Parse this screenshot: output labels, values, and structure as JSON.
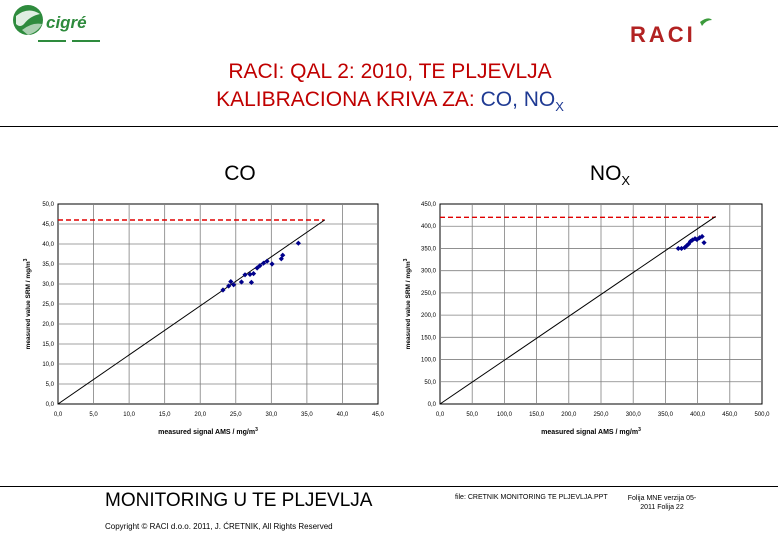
{
  "header": {
    "cigre_logo_text": "cigré",
    "raci_logo_text": "RACI",
    "title_line1": "RACI: QAL 2: 2010, TE PLJEVLJA",
    "title_line2_prefix": "KALIBRACIONA KRIVA ZA: ",
    "title_line2_suffix": "CO, NO",
    "title_line2_sub": "X"
  },
  "colors": {
    "title": "#c00000",
    "points": "#00008b",
    "dashed": "#e00000",
    "grid": "#808080"
  },
  "chart_data": [
    {
      "type": "scatter",
      "title": "CO",
      "title_sub": "",
      "xlabel": "measured signal AMS / mg/m",
      "xlabel_sup": "3",
      "ylabel": "measured value SRM / mg/m",
      "ylabel_sup": "3",
      "xlim": [
        0,
        45
      ],
      "ylim": [
        0,
        50
      ],
      "xticks": [
        "0,0",
        "5,0",
        "10,0",
        "15,0",
        "20,0",
        "25,0",
        "30,0",
        "35,0",
        "40,0",
        "45,0"
      ],
      "yticks": [
        "0,0",
        "5,0",
        "10,0",
        "15,0",
        "20,0",
        "25,0",
        "30,0",
        "35,0",
        "40,0",
        "45,0",
        "50,0"
      ],
      "dashed_limit_y": 46,
      "calibration_line": [
        [
          0,
          0
        ],
        [
          37.5,
          46
        ]
      ],
      "points": [
        [
          23.2,
          28.5
        ],
        [
          24.0,
          29.5
        ],
        [
          24.3,
          30.6
        ],
        [
          24.7,
          29.8
        ],
        [
          25.8,
          30.5
        ],
        [
          26.3,
          32.3
        ],
        [
          27.0,
          32.4
        ],
        [
          27.2,
          30.4
        ],
        [
          27.5,
          32.6
        ],
        [
          28.0,
          34.0
        ],
        [
          28.4,
          34.6
        ],
        [
          28.9,
          35.2
        ],
        [
          29.4,
          35.7
        ],
        [
          30.1,
          35.0
        ],
        [
          31.4,
          36.3
        ],
        [
          31.6,
          37.2
        ],
        [
          33.8,
          40.2
        ]
      ]
    },
    {
      "type": "scatter",
      "title": "NO",
      "title_sub": "X",
      "xlabel": "measured signal AMS / mg/m",
      "xlabel_sup": "3",
      "ylabel": "measured value SRM / mg/m",
      "ylabel_sup": "3",
      "xlim": [
        0,
        500
      ],
      "ylim": [
        0,
        450
      ],
      "xticks": [
        "0,0",
        "50,0",
        "100,0",
        "150,0",
        "200,0",
        "250,0",
        "300,0",
        "350,0",
        "400,0",
        "450,0",
        "500,0"
      ],
      "yticks": [
        "0,0",
        "50,0",
        "100,0",
        "150,0",
        "200,0",
        "250,0",
        "300,0",
        "350,0",
        "400,0",
        "450,0"
      ],
      "dashed_limit_y": 420,
      "calibration_line": [
        [
          0,
          0
        ],
        [
          428,
          422
        ]
      ],
      "points": [
        [
          370,
          350
        ],
        [
          375,
          350
        ],
        [
          380,
          352
        ],
        [
          383,
          356
        ],
        [
          386,
          360
        ],
        [
          389,
          366
        ],
        [
          392,
          369
        ],
        [
          396,
          372
        ],
        [
          399,
          370
        ],
        [
          403,
          374
        ],
        [
          407,
          377
        ],
        [
          410,
          363
        ]
      ]
    }
  ],
  "footer": {
    "main": "MONITORING U TE PLJEVLJA",
    "copyright": "Copyright © RACI d.o.o. 2011, J. ĆRETNIK, All Rights Reserved",
    "file": "file: CRETNIK MONITORING TE PLJEVLJA.PPT",
    "version": "Folija MNE verzija 05-",
    "page": "2011    Folija 22"
  }
}
